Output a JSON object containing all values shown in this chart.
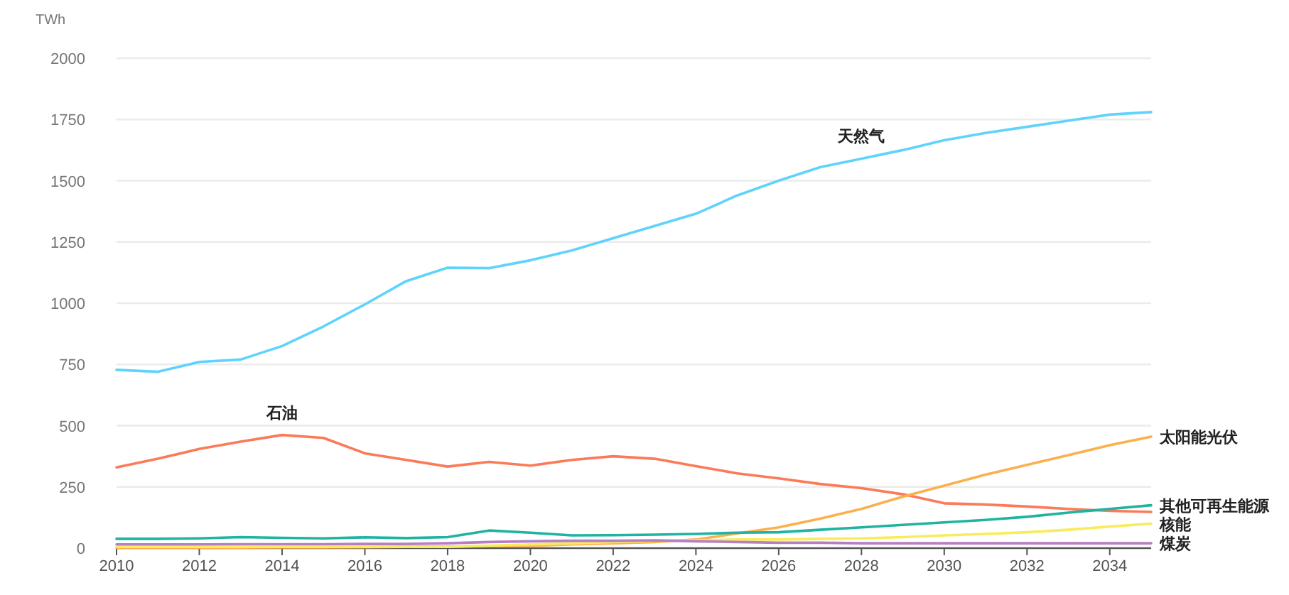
{
  "chart_data": {
    "type": "line",
    "ylabel": "TWh",
    "x": [
      2010,
      2011,
      2012,
      2013,
      2014,
      2015,
      2016,
      2017,
      2018,
      2019,
      2020,
      2021,
      2022,
      2023,
      2024,
      2025,
      2026,
      2027,
      2028,
      2029,
      2030,
      2031,
      2032,
      2033,
      2034,
      2035
    ],
    "xlim": [
      2010,
      2035
    ],
    "xticks": [
      2010,
      2012,
      2014,
      2016,
      2018,
      2020,
      2022,
      2024,
      2026,
      2028,
      2030,
      2032,
      2034
    ],
    "ylim": [
      0,
      2000
    ],
    "yticks": [
      0,
      250,
      500,
      750,
      1000,
      1250,
      1500,
      1750,
      2000
    ],
    "grid": "y",
    "legend": false,
    "marker": "none",
    "line_style": "solid",
    "series": [
      {
        "name": "天然气",
        "color": "#5fd3fb",
        "values": [
          728,
          720,
          760,
          770,
          825,
          905,
          995,
          1090,
          1145,
          1143,
          1175,
          1215,
          1265,
          1315,
          1365,
          1440,
          1500,
          1555,
          1590,
          1625,
          1665,
          1695,
          1720,
          1745,
          1770,
          1780
        ]
      },
      {
        "name": "石油",
        "color": "#fb7a58",
        "values": [
          330,
          365,
          405,
          435,
          462,
          450,
          387,
          360,
          333,
          352,
          337,
          360,
          375,
          365,
          335,
          305,
          285,
          262,
          245,
          220,
          183,
          178,
          170,
          160,
          152,
          148
        ]
      },
      {
        "name": "太阳能光伏",
        "color": "#fbb04e",
        "values": [
          2,
          2,
          2,
          2,
          3,
          3,
          4,
          5,
          6,
          8,
          10,
          15,
          20,
          25,
          35,
          60,
          85,
          120,
          160,
          210,
          255,
          300,
          340,
          380,
          420,
          455
        ]
      },
      {
        "name": "其他可再生能源",
        "color": "#1fb3a0",
        "values": [
          38,
          38,
          40,
          45,
          42,
          40,
          44,
          41,
          45,
          72,
          63,
          52,
          53,
          55,
          58,
          63,
          65,
          75,
          85,
          95,
          105,
          115,
          128,
          145,
          160,
          175
        ]
      },
      {
        "name": "核能",
        "color": "#f8ec5c",
        "values": [
          5,
          5,
          5,
          5,
          5,
          5,
          5,
          5,
          5,
          10,
          15,
          20,
          25,
          30,
          32,
          35,
          35,
          38,
          40,
          45,
          52,
          58,
          65,
          75,
          88,
          100
        ]
      },
      {
        "name": "煤炭",
        "color": "#b67fc4",
        "values": [
          15,
          15,
          15,
          16,
          16,
          16,
          17,
          17,
          20,
          25,
          28,
          30,
          30,
          32,
          28,
          25,
          22,
          22,
          20,
          20,
          20,
          20,
          20,
          20,
          20,
          20
        ]
      }
    ]
  }
}
